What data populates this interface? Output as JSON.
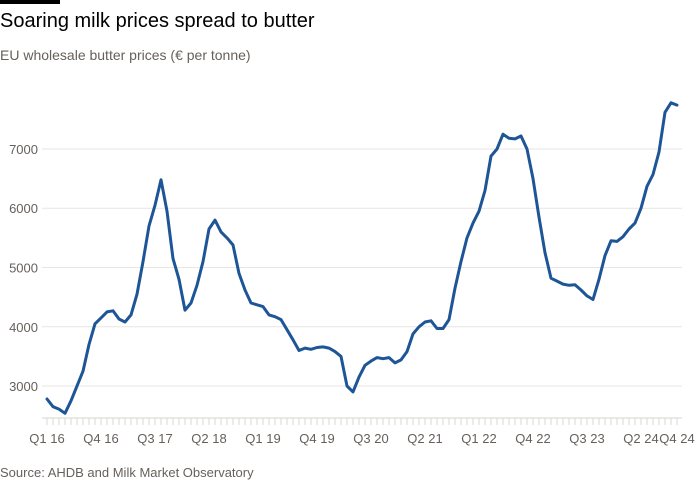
{
  "header": {
    "title": "Soaring milk prices spread to butter",
    "subtitle": "EU wholesale butter prices (€ per tonne)"
  },
  "footer": {
    "source": "Source: AHDB and Milk Market Observatory"
  },
  "colors": {
    "line": "#1d5597",
    "grid": "#e9e6e2",
    "text": "#66605c"
  },
  "chart_data": {
    "type": "line",
    "title": "Soaring milk prices spread to butter",
    "subtitle": "EU wholesale butter prices (€ per tonne)",
    "xlabel": "",
    "ylabel": "€ per tonne",
    "start": "2016-01",
    "frequency": "monthly",
    "ylim": [
      2460,
      8080
    ],
    "yticks": [
      3000,
      4000,
      5000,
      6000,
      7000
    ],
    "ytick_labels": [
      "3000",
      "4000",
      "5000",
      "6000",
      "7000"
    ],
    "xtick_labels": [
      "Q1 16",
      "Q4 16",
      "Q3 17",
      "Q2 18",
      "Q1 19",
      "Q4 19",
      "Q3 20",
      "Q2 21",
      "Q1 22",
      "Q4 22",
      "Q3 23",
      "Q2 24",
      "Q4 24"
    ],
    "xtick_month_index": [
      0,
      9,
      18,
      27,
      36,
      45,
      54,
      63,
      72,
      81,
      90,
      99,
      105
    ],
    "grid": true,
    "series": [
      {
        "name": "EU wholesale butter price",
        "values": [
          2780,
          2650,
          2610,
          2540,
          2750,
          3000,
          3250,
          3700,
          4050,
          4150,
          4250,
          4270,
          4130,
          4080,
          4200,
          4550,
          5100,
          5700,
          6050,
          6480,
          5950,
          5150,
          4800,
          4280,
          4400,
          4700,
          5100,
          5650,
          5800,
          5600,
          5500,
          5380,
          4900,
          4620,
          4400,
          4370,
          4340,
          4200,
          4170,
          4120,
          3950,
          3780,
          3600,
          3640,
          3620,
          3650,
          3660,
          3640,
          3580,
          3500,
          3000,
          2900,
          3150,
          3350,
          3420,
          3480,
          3460,
          3480,
          3390,
          3440,
          3580,
          3880,
          4000,
          4080,
          4100,
          3970,
          3970,
          4120,
          4650,
          5100,
          5500,
          5750,
          5950,
          6300,
          6880,
          7000,
          7250,
          7180,
          7170,
          7220,
          7000,
          6500,
          5850,
          5250,
          4820,
          4770,
          4720,
          4700,
          4710,
          4620,
          4520,
          4460,
          4800,
          5200,
          5450,
          5440,
          5520,
          5650,
          5750,
          6000,
          6370,
          6570,
          6950,
          7620,
          7780,
          7740
        ]
      }
    ]
  }
}
